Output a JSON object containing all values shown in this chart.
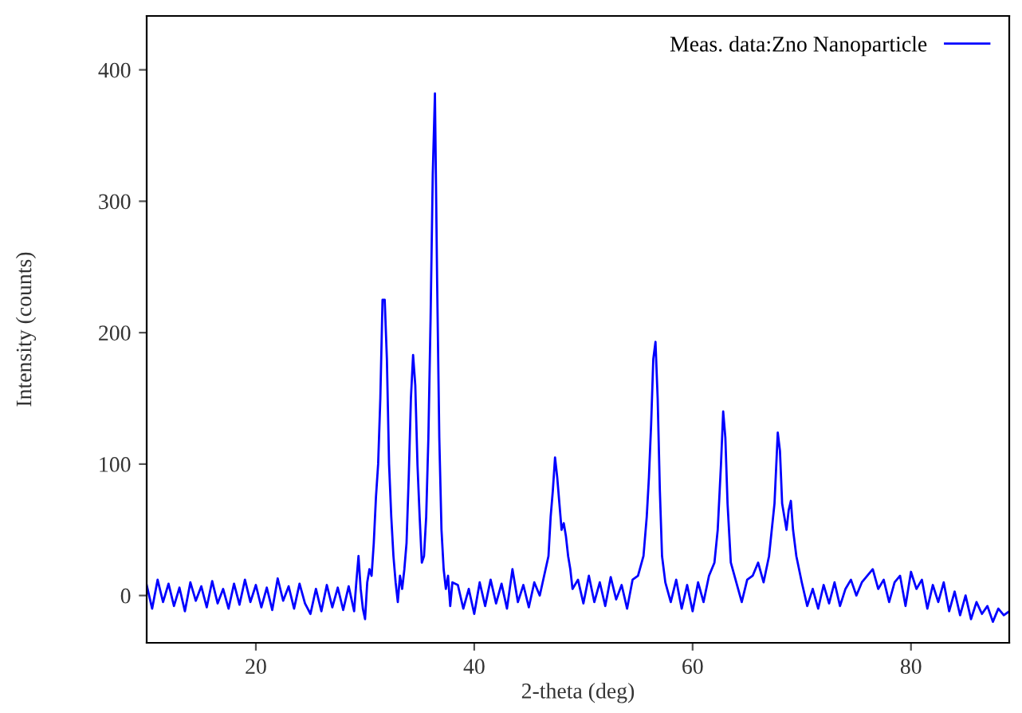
{
  "chart_data": {
    "type": "line",
    "xlabel": "2-theta (deg)",
    "ylabel": "Intensity (counts)",
    "xlim": [
      10,
      89
    ],
    "ylim": [
      -36,
      441
    ],
    "xticks": [
      20,
      40,
      60,
      80
    ],
    "yticks": [
      0,
      100,
      200,
      300,
      400
    ],
    "grid": false,
    "legend": "top right",
    "marker": "none",
    "line_style": "solid",
    "series": [
      {
        "name": "Meas. data:Zno Nanoparticle",
        "color": "#0000ff",
        "x": [
          10,
          10.5,
          11,
          11.5,
          12,
          12.5,
          13,
          13.5,
          14,
          14.5,
          15,
          15.5,
          16,
          16.5,
          17,
          17.5,
          18,
          18.5,
          19,
          19.5,
          20,
          20.5,
          21,
          21.5,
          22,
          22.5,
          23,
          23.5,
          24,
          24.5,
          25,
          25.5,
          26,
          26.5,
          27,
          27.5,
          28,
          28.5,
          29,
          29.2,
          29.4,
          29.6,
          29.8,
          30.0,
          30.2,
          30.4,
          30.6,
          30.8,
          31.0,
          31.2,
          31.4,
          31.6,
          31.8,
          32.0,
          32.2,
          32.4,
          32.6,
          32.8,
          33.0,
          33.2,
          33.4,
          33.6,
          33.8,
          34.0,
          34.2,
          34.4,
          34.6,
          34.8,
          35.0,
          35.2,
          35.4,
          35.6,
          35.8,
          36.0,
          36.2,
          36.4,
          36.6,
          36.8,
          37.0,
          37.2,
          37.4,
          37.6,
          37.8,
          38.0,
          38.5,
          39,
          39.5,
          40,
          40.5,
          41,
          41.5,
          42,
          42.5,
          43,
          43.5,
          44,
          44.5,
          45,
          45.5,
          46,
          46.4,
          46.8,
          47.0,
          47.2,
          47.4,
          47.6,
          47.8,
          48.0,
          48.2,
          48.4,
          48.6,
          48.8,
          49,
          49.5,
          50,
          50.5,
          51,
          51.5,
          52,
          52.5,
          53,
          53.5,
          54,
          54.5,
          55,
          55.5,
          55.8,
          56.0,
          56.2,
          56.4,
          56.6,
          56.8,
          57.0,
          57.2,
          57.5,
          58,
          58.5,
          59,
          59.5,
          60,
          60.5,
          61,
          61.5,
          62,
          62.3,
          62.6,
          62.8,
          63.0,
          63.2,
          63.5,
          64,
          64.5,
          65,
          65.5,
          66,
          66.5,
          67,
          67.5,
          67.8,
          68.0,
          68.2,
          68.4,
          68.6,
          68.8,
          69.0,
          69.2,
          69.5,
          70,
          70.5,
          71,
          71.5,
          72,
          72.5,
          73,
          73.5,
          74,
          74.5,
          75,
          75.5,
          76,
          76.5,
          77,
          77.5,
          78,
          78.5,
          79,
          79.5,
          80,
          80.5,
          81,
          81.5,
          82,
          82.5,
          83,
          83.5,
          84,
          84.5,
          85,
          85.5,
          86,
          86.5,
          87,
          87.5,
          88,
          88.5,
          89
        ],
        "values": [
          8,
          -10,
          12,
          -5,
          9,
          -8,
          6,
          -12,
          10,
          -4,
          7,
          -9,
          11,
          -6,
          5,
          -10,
          9,
          -7,
          12,
          -5,
          8,
          -9,
          6,
          -11,
          13,
          -4,
          7,
          -10,
          9,
          -6,
          -14,
          5,
          -12,
          8,
          -9,
          6,
          -11,
          7,
          -12,
          10,
          30,
          5,
          -10,
          -18,
          10,
          20,
          15,
          40,
          75,
          100,
          150,
          225,
          225,
          180,
          100,
          60,
          30,
          10,
          -5,
          15,
          5,
          20,
          40,
          90,
          150,
          183,
          160,
          100,
          60,
          25,
          30,
          60,
          120,
          210,
          320,
          382,
          240,
          120,
          50,
          20,
          5,
          15,
          -8,
          10,
          8,
          -10,
          5,
          -14,
          10,
          -8,
          12,
          -6,
          9,
          -10,
          20,
          -5,
          8,
          -9,
          10,
          0,
          15,
          30,
          60,
          80,
          105,
          90,
          70,
          50,
          55,
          45,
          30,
          20,
          5,
          12,
          -6,
          15,
          -5,
          10,
          -8,
          14,
          -3,
          8,
          -10,
          12,
          15,
          30,
          60,
          90,
          130,
          180,
          193,
          150,
          80,
          30,
          10,
          -5,
          12,
          -10,
          8,
          -12,
          10,
          -5,
          15,
          25,
          50,
          100,
          140,
          120,
          70,
          25,
          10,
          -5,
          12,
          15,
          25,
          10,
          30,
          70,
          124,
          110,
          70,
          60,
          50,
          65,
          72,
          50,
          30,
          10,
          -8,
          5,
          -10,
          8,
          -6,
          10,
          -8,
          5,
          12,
          0,
          10,
          15,
          20,
          5,
          12,
          -5,
          10,
          15,
          -8,
          18,
          5,
          12,
          -10,
          8,
          -5,
          10,
          -12,
          3,
          -15,
          0,
          -18,
          -5,
          -14,
          -8,
          -20,
          -10,
          -15,
          -12
        ]
      }
    ]
  }
}
